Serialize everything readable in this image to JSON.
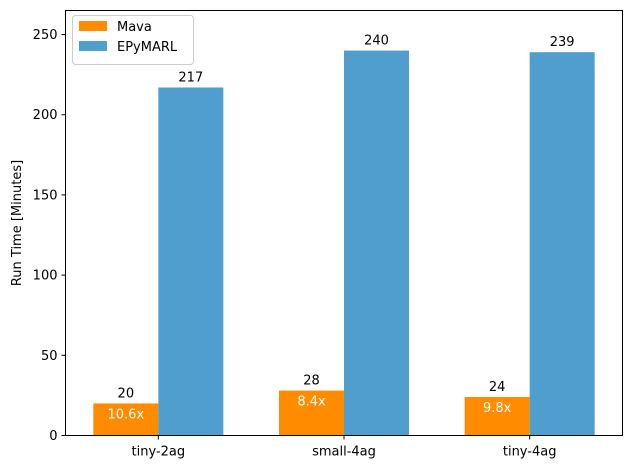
{
  "chart_data": {
    "type": "bar",
    "title": "",
    "xlabel": "",
    "ylabel": "Run Time [Minutes]",
    "categories": [
      "tiny-2ag",
      "small-4ag",
      "tiny-4ag"
    ],
    "series": [
      {
        "name": "Mava",
        "values": [
          20,
          28,
          24
        ],
        "color": "#ff8c00",
        "data_labels": [
          "20",
          "28",
          "24"
        ],
        "inner_labels": [
          "10.6x",
          "8.4x",
          "9.8x"
        ]
      },
      {
        "name": "EPyMARL",
        "values": [
          217,
          240,
          239
        ],
        "color": "#4f9ecd",
        "data_labels": [
          "217",
          "240",
          "239"
        ]
      }
    ],
    "ylim": [
      0,
      265
    ],
    "yticks": [
      0,
      50,
      100,
      150,
      200,
      250
    ],
    "grid": false,
    "legend_position": "top-left"
  }
}
